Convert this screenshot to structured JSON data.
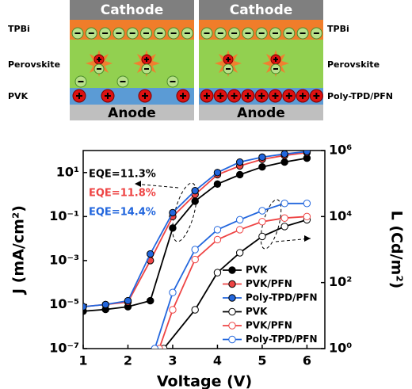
{
  "diagram": {
    "left": {
      "top": "Cathode",
      "bottom": "Anode",
      "layers": [
        "TPBi",
        "Perovskite",
        "PVK"
      ]
    },
    "right": {
      "top": "Cathode",
      "bottom": "Anode",
      "layers": [
        "TPBi",
        "Perovskite",
        "Poly-TPD/PFN"
      ]
    }
  },
  "chart_data": {
    "type": "line",
    "xlabel": "Voltage (V)",
    "ylabel": "J (mA/cm²)",
    "y2label": "L (Cd/m²)",
    "xlim": [
      1,
      6.4
    ],
    "xticks": [
      1,
      2,
      3,
      4,
      5,
      6
    ],
    "ylim": [
      1e-07,
      100
    ],
    "ylog": true,
    "yticks": [
      {
        "value": 1e-07,
        "label": "10⁻⁷"
      },
      {
        "value": 1e-05,
        "label": "10⁻⁵"
      },
      {
        "value": 0.001,
        "label": "10⁻³"
      },
      {
        "value": 0.1,
        "label": "10⁻¹"
      },
      {
        "value": 10,
        "label": "10¹"
      }
    ],
    "y2lim": [
      1,
      1000000
    ],
    "y2log": true,
    "y2ticks": [
      {
        "value": 1,
        "label": "10⁰"
      },
      {
        "value": 100,
        "label": "10²"
      },
      {
        "value": 10000,
        "label": "10⁴"
      },
      {
        "value": 1000000,
        "label": "10⁶"
      }
    ],
    "annotations": [
      {
        "text": "EQE=11.3%",
        "color": "#000000"
      },
      {
        "text": "EQE=11.8%",
        "color": "#ee4444"
      },
      {
        "text": "EQE=14.4%",
        "color": "#2266dd"
      }
    ],
    "series": [
      {
        "name": "PVK",
        "color": "#000000",
        "marker": "filled",
        "x": [
          1,
          1.5,
          2,
          2.5,
          3,
          3.5,
          4,
          4.5,
          5,
          5.5,
          6
        ],
        "values": [
          5e-06,
          6e-06,
          8e-06,
          1.5e-05,
          0.03,
          0.5,
          3,
          8,
          18,
          30,
          45
        ]
      },
      {
        "name": "PVK/PFN",
        "color": "#ee4444",
        "marker": "filled",
        "x": [
          1,
          1.5,
          2,
          2.5,
          3,
          3.5,
          4,
          4.5,
          5,
          5.5,
          6
        ],
        "values": [
          8e-06,
          1e-05,
          1.3e-05,
          0.001,
          0.1,
          1,
          8,
          20,
          40,
          60,
          80
        ]
      },
      {
        "name": "Poly-TPD/PFN",
        "color": "#2266dd",
        "marker": "filled",
        "x": [
          1,
          1.5,
          2,
          2.5,
          3,
          3.5,
          4,
          4.5,
          5,
          5.5,
          6
        ],
        "values": [
          8e-06,
          1e-05,
          1.5e-05,
          0.002,
          0.15,
          1.5,
          10,
          30,
          50,
          70,
          90
        ]
      },
      {
        "name": "PVK",
        "color": "#000000",
        "marker": "open",
        "axis": "y2",
        "x": [
          2.8,
          3.5,
          4,
          4.5,
          5,
          5.5,
          6
        ],
        "values": [
          1,
          15,
          200,
          800,
          2500,
          5000,
          8000
        ]
      },
      {
        "name": "PVK/PFN",
        "color": "#ee4444",
        "marker": "open",
        "axis": "y2",
        "x": [
          2.7,
          3,
          3.5,
          4,
          4.5,
          5,
          5.5,
          6
        ],
        "values": [
          1,
          15,
          500,
          2000,
          4000,
          7000,
          9000,
          10000
        ]
      },
      {
        "name": "Poly-TPD/PFN",
        "color": "#2266dd",
        "marker": "open",
        "axis": "y2",
        "x": [
          2.6,
          3,
          3.5,
          4,
          4.5,
          5,
          5.5,
          6
        ],
        "values": [
          1,
          50,
          1000,
          4000,
          8000,
          15000,
          25000,
          25000
        ]
      }
    ]
  }
}
